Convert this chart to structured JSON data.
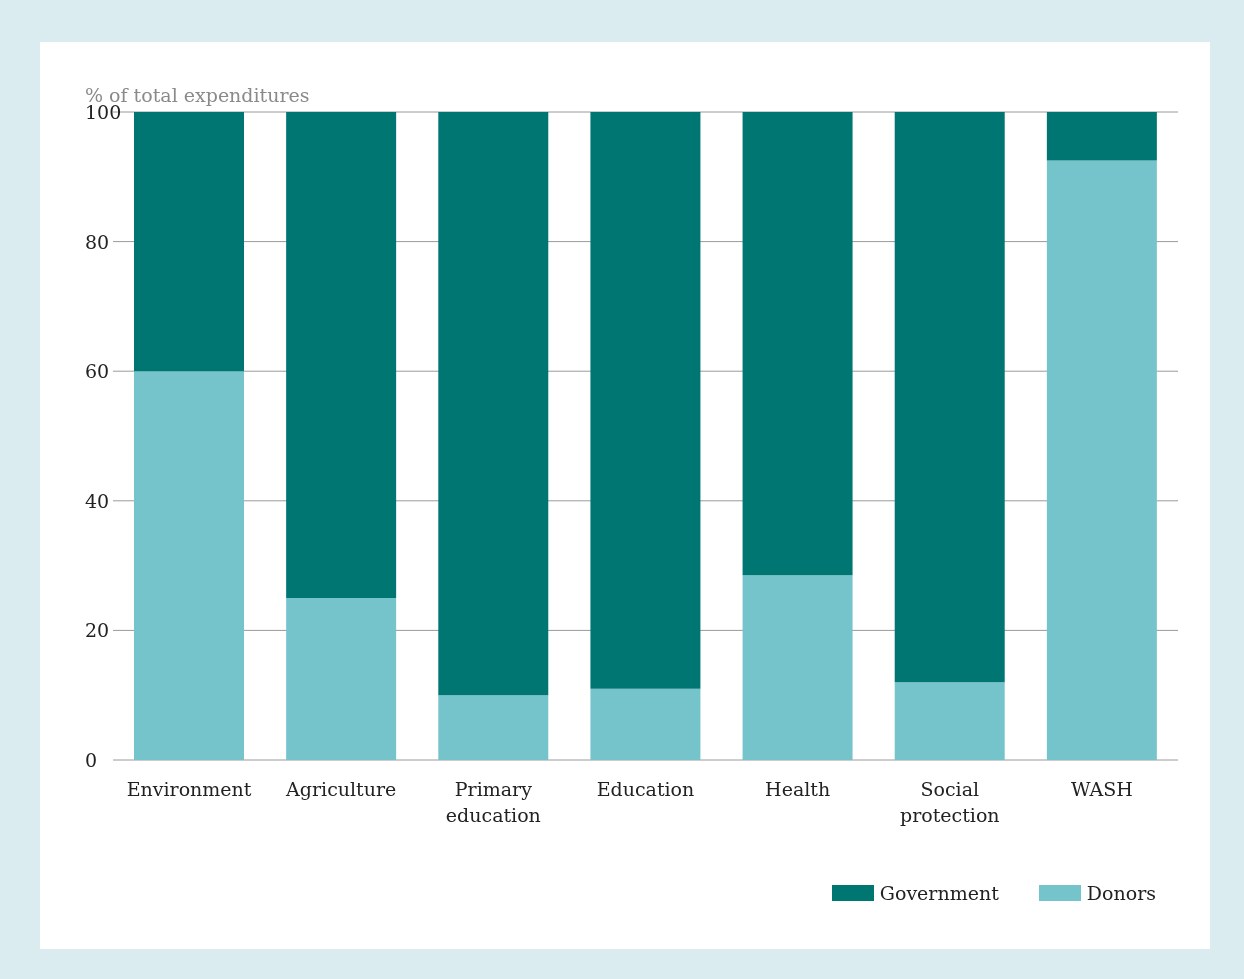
{
  "chart_data": {
    "type": "bar",
    "stacked": true,
    "ylabel": "% of total expenditures",
    "categories": [
      "Environment",
      "Agriculture",
      "Primary education",
      "Education",
      "Health",
      "Social protection",
      "WASH"
    ],
    "series": [
      {
        "name": "Donors",
        "color": "#76c4cb",
        "values": [
          60,
          25,
          10,
          11,
          28.5,
          12,
          92.5
        ]
      },
      {
        "name": "Government",
        "color": "#007672",
        "values": [
          40,
          75,
          90,
          89,
          71.5,
          88,
          7.5
        ]
      }
    ],
    "ylim": [
      0,
      100
    ],
    "yticks": [
      0,
      20,
      40,
      60,
      80,
      100
    ],
    "grid": "y",
    "legend": "bottom right"
  }
}
